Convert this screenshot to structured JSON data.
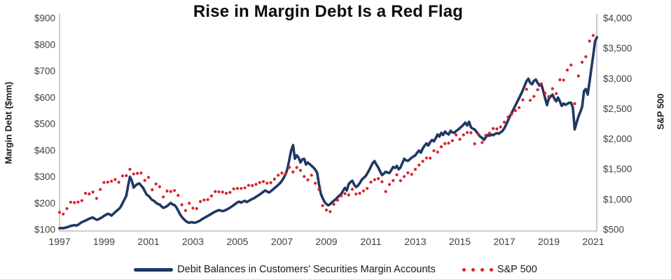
{
  "title": "Rise in Margin Debt Is a Red Flag",
  "colors": {
    "margin_debt_line": "#1f3864",
    "sp500_dots": "#da2128",
    "axis_line": "#bdbdbd",
    "tick_text": "#3f3f3f",
    "title_text": "#0d0d0d"
  },
  "legend": {
    "margin_debt_label": "Debit Balances in Customers' Securities Margin Accounts",
    "sp500_label": "S&P 500"
  },
  "chart_data": {
    "type": "line",
    "title": "Rise in Margin Debt Is a Red Flag",
    "grid": false,
    "legend_position": "bottom",
    "left_axis": {
      "label": "Margin Debt ($mm)",
      "range": [
        100,
        900
      ],
      "ticks": [
        "$100",
        "$200",
        "$300",
        "$400",
        "$500",
        "$600",
        "$700",
        "$800",
        "$900"
      ]
    },
    "right_axis": {
      "label": "S&P 500",
      "range": [
        500,
        4000
      ],
      "ticks": [
        "$500",
        "$1,000",
        "$1,500",
        "$2,000",
        "$2,500",
        "$3,000",
        "$3,500",
        "$4,000"
      ]
    },
    "x_axis": {
      "tick_labels": [
        "1997",
        "1999",
        "2001",
        "2003",
        "2005",
        "2007",
        "2009",
        "2011",
        "2013",
        "2015",
        "2017",
        "2019",
        "2021"
      ],
      "start_year": 1997,
      "years_per_tick": 2
    },
    "series": [
      {
        "name": "Debit Balances in Customers' Securities Margin Accounts",
        "axis": "left",
        "style": "solid",
        "color": "#1f3864",
        "start": "1997-01",
        "frequency": "monthly",
        "values": [
          105,
          106,
          105,
          107,
          109,
          111,
          114,
          115,
          117,
          115,
          118,
          123,
          128,
          131,
          134,
          138,
          141,
          144,
          146,
          141,
          137,
          139,
          143,
          147,
          152,
          156,
          160,
          158,
          153,
          159,
          166,
          172,
          178,
          186,
          200,
          214,
          228,
          266,
          300,
          285,
          259,
          267,
          272,
          275,
          267,
          259,
          246,
          232,
          228,
          220,
          212,
          209,
          202,
          197,
          195,
          188,
          182,
          185,
          189,
          195,
          201,
          195,
          193,
          185,
          172,
          158,
          148,
          140,
          133,
          128,
          126,
          128,
          127,
          126,
          128,
          131,
          135,
          140,
          144,
          148,
          152,
          156,
          160,
          164,
          168,
          171,
          174,
          172,
          170,
          172,
          175,
          179,
          183,
          188,
          193,
          198,
          203,
          206,
          202,
          206,
          209,
          204,
          208,
          212,
          216,
          219,
          224,
          228,
          233,
          238,
          243,
          248,
          244,
          240,
          245,
          251,
          257,
          263,
          269,
          276,
          285,
          296,
          310,
          330,
          365,
          400,
          420,
          368,
          381,
          372,
          354,
          366,
          368,
          346,
          354,
          348,
          341,
          335,
          327,
          315,
          272,
          235,
          219,
          205,
          197,
          192,
          196,
          203,
          209,
          215,
          222,
          229,
          235,
          247,
          258,
          248,
          272,
          280,
          285,
          270,
          261,
          266,
          276,
          288,
          295,
          301,
          312,
          324,
          338,
          352,
          359,
          346,
          335,
          320,
          306,
          312,
          319,
          316,
          314,
          325,
          337,
          333,
          341,
          328,
          335,
          352,
          368,
          362,
          360,
          366,
          372,
          377,
          381,
          391,
          399,
          391,
          407,
          418,
          426,
          418,
          431,
          439,
          434,
          446,
          460,
          452,
          466,
          458,
          471,
          464,
          460,
          474,
          468,
          466,
          473,
          478,
          484,
          490,
          497,
          505,
          494,
          508,
          487,
          482,
          479,
          470,
          460,
          452,
          447,
          439,
          450,
          458,
          455,
          460,
          457,
          462,
          465,
          463,
          468,
          473,
          483,
          497,
          513,
          528,
          542,
          556,
          570,
          584,
          598,
          612,
          628,
          645,
          662,
          671,
          655,
          650,
          663,
          668,
          655,
          645,
          650,
          625,
          598,
          571,
          595,
          603,
          611,
          596,
          585,
          600,
          585,
          568,
          577,
          572,
          576,
          580,
          580,
          562,
          479,
          505,
          527,
          545,
          564,
          624,
          632,
          611,
          659,
          712,
          760,
          813,
          828
        ]
      },
      {
        "name": "S&P 500",
        "axis": "right",
        "style": "dotted",
        "color": "#da2128",
        "start": "1997-01",
        "frequency": "monthly",
        "values": [
          786,
          791,
          757,
          801,
          848,
          885,
          954,
          899,
          947,
          915,
          955,
          970,
          980,
          1049,
          1102,
          1112,
          1091,
          1134,
          1121,
          957,
          1017,
          1099,
          1164,
          1229,
          1280,
          1238,
          1286,
          1335,
          1302,
          1373,
          1329,
          1320,
          1283,
          1363,
          1389,
          1469,
          1394,
          1366,
          1499,
          1452,
          1421,
          1455,
          1431,
          1518,
          1437,
          1429,
          1315,
          1320,
          1366,
          1240,
          1160,
          1249,
          1256,
          1224,
          1211,
          1134,
          1041,
          1060,
          1139,
          1148,
          1130,
          1107,
          1147,
          1077,
          1067,
          990,
          911,
          916,
          815,
          886,
          936,
          880,
          856,
          841,
          848,
          917,
          964,
          975,
          990,
          1008,
          996,
          1051,
          1058,
          1112,
          1131,
          1145,
          1126,
          1107,
          1121,
          1141,
          1102,
          1104,
          1115,
          1130,
          1174,
          1212,
          1181,
          1204,
          1181,
          1157,
          1192,
          1191,
          1234,
          1220,
          1229,
          1207,
          1249,
          1248,
          1280,
          1281,
          1295,
          1311,
          1270,
          1270,
          1277,
          1304,
          1336,
          1378,
          1401,
          1418,
          1438,
          1407,
          1421,
          1482,
          1531,
          1503,
          1455,
          1474,
          1527,
          1549,
          1481,
          1468,
          1378,
          1331,
          1323,
          1386,
          1400,
          1280,
          1267,
          1283,
          1166,
          969,
          896,
          903,
          825,
          735,
          798,
          873,
          919,
          919,
          987,
          1021,
          1057,
          1036,
          1096,
          1115,
          1074,
          1104,
          1169,
          1187,
          1089,
          1031,
          1102,
          1049,
          1141,
          1183,
          1181,
          1258,
          1286,
          1327,
          1326,
          1364,
          1345,
          1321,
          1292,
          1219,
          1131,
          1253,
          1247,
          1258,
          1312,
          1366,
          1408,
          1398,
          1310,
          1362,
          1379,
          1407,
          1441,
          1412,
          1416,
          1426,
          1498,
          1515,
          1569,
          1598,
          1631,
          1606,
          1686,
          1633,
          1682,
          1757,
          1806,
          1848,
          1783,
          1859,
          1872,
          1884,
          1924,
          1960,
          1931,
          2003,
          1972,
          2018,
          2068,
          2059,
          1995,
          2105,
          2068,
          2086,
          2107,
          2063,
          2104,
          1972,
          1920,
          2079,
          2080,
          2044,
          1940,
          1932,
          2060,
          2065,
          2097,
          2099,
          2174,
          2171,
          2168,
          2126,
          2199,
          2239,
          2279,
          2364,
          2363,
          2384,
          2412,
          2423,
          2470,
          2472,
          2519,
          2575,
          2648,
          2674,
          2824,
          2714,
          2641,
          2648,
          2705,
          2718,
          2816,
          2902,
          2914,
          2712,
          2760,
          2507,
          2704,
          2785,
          2834,
          2946,
          2752,
          2942,
          2980,
          2926,
          2977,
          3038,
          3141,
          3231,
          3226,
          2954,
          2585,
          2912,
          3044,
          3100,
          3271,
          3500,
          3363,
          3270,
          3622,
          3756,
          3714,
          3811
        ]
      }
    ]
  }
}
